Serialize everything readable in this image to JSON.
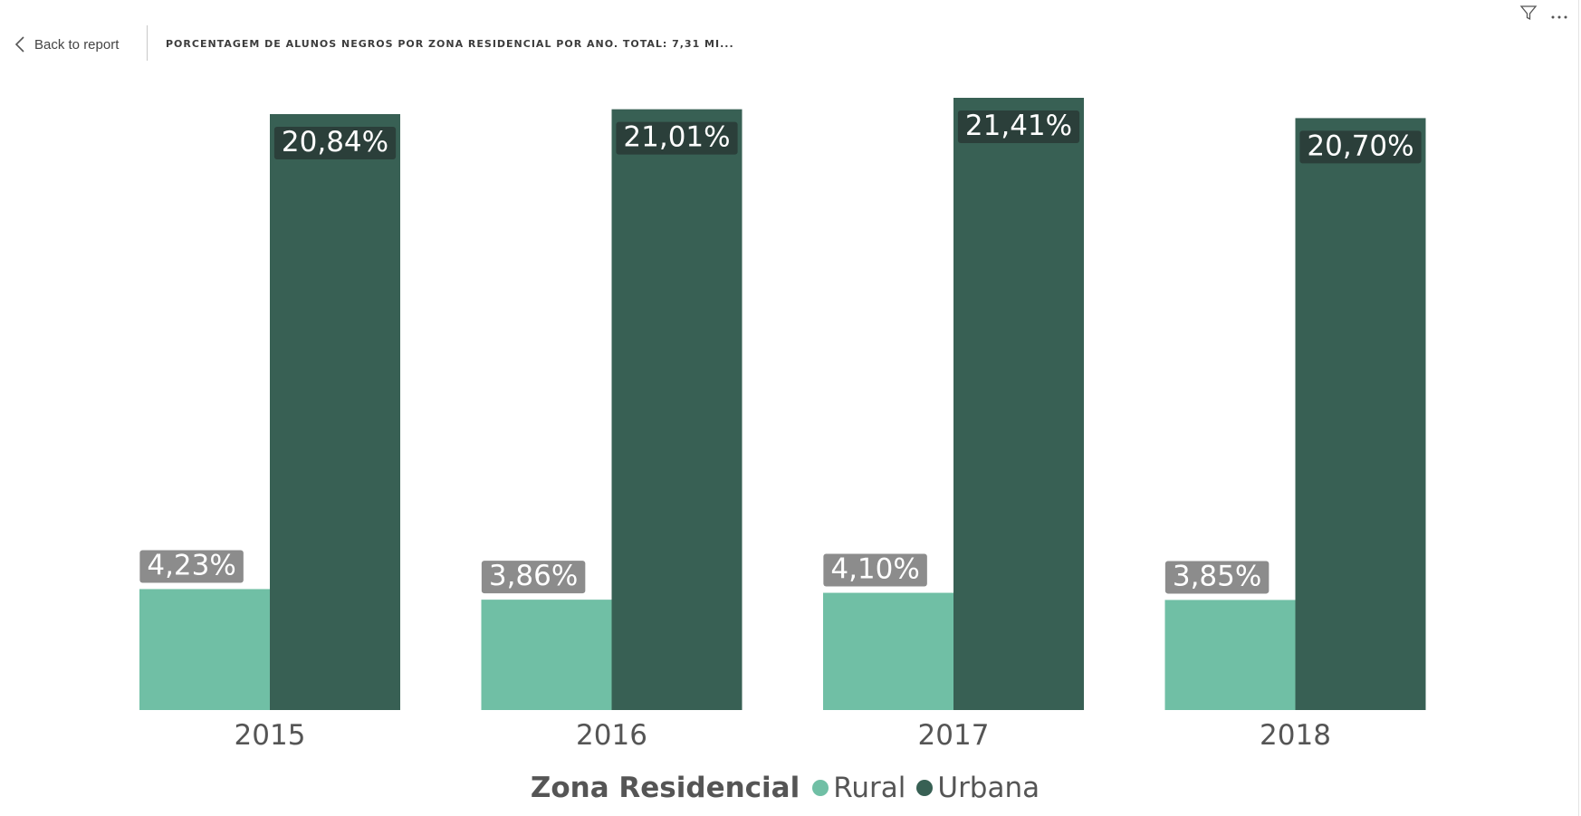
{
  "header": {
    "back_label": "Back to report",
    "title": "PORCENTAGEM DE ALUNOS NEGROS POR ZONA RESIDENCIAL POR ANO. TOTAL: 7,31 MI..."
  },
  "icons": {
    "back": "chevron-left-icon",
    "filter": "filter-icon",
    "more": "more-options-icon"
  },
  "legend": {
    "title": "Zona Residencial",
    "items": [
      {
        "label": "Rural",
        "color": "#70bfa5"
      },
      {
        "label": "Urbana",
        "color": "#386054"
      }
    ]
  },
  "chart_data": {
    "type": "bar",
    "title": "PORCENTAGEM DE ALUNOS NEGROS POR ZONA RESIDENCIAL POR ANO. TOTAL: 7,31 MI...",
    "xlabel": "",
    "ylabel": "",
    "categories": [
      "2015",
      "2016",
      "2017",
      "2018"
    ],
    "series": [
      {
        "name": "Rural",
        "color": "#70bfa5",
        "values": [
          4.23,
          3.86,
          4.1,
          3.85
        ],
        "labels": [
          "4,23%",
          "3,86%",
          "4,10%",
          "3,85%"
        ]
      },
      {
        "name": "Urbana",
        "color": "#386054",
        "values": [
          20.84,
          21.01,
          21.41,
          20.7
        ],
        "labels": [
          "20,84%",
          "21,01%",
          "21,41%",
          "20,70%"
        ]
      }
    ],
    "ylim": [
      0,
      21.41
    ],
    "grid": false,
    "legend_position": "bottom",
    "data_label_colors": {
      "Rural": "#8c8c8c",
      "Urbana": "#2b3f3a"
    }
  }
}
